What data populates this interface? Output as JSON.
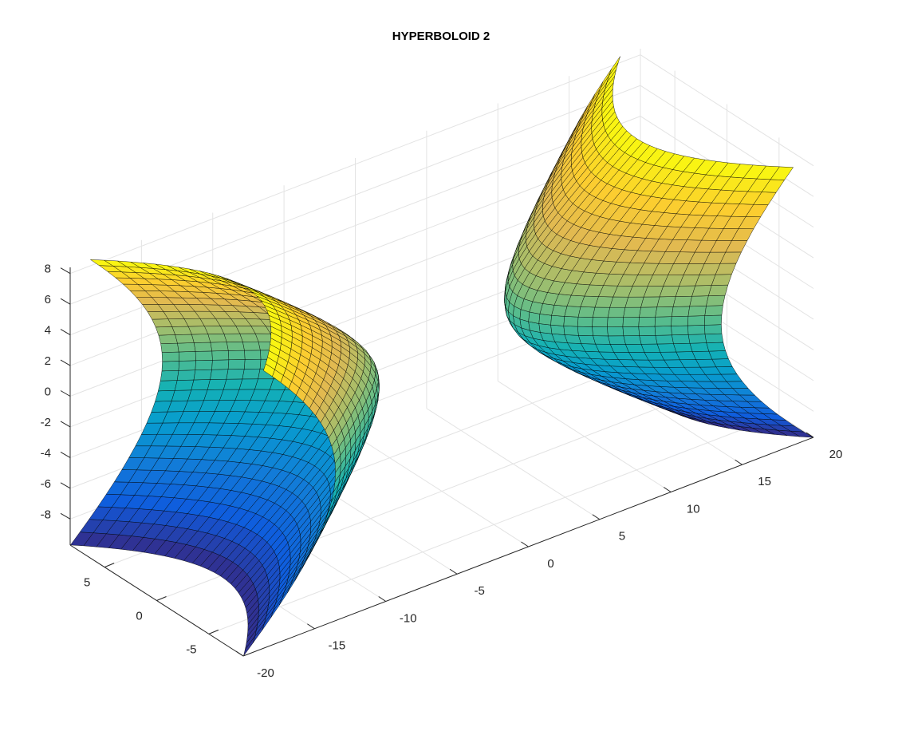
{
  "chart_data": {
    "type": "surface3d",
    "title": "HYPERBOLOID 2",
    "xlim": [
      -20,
      20
    ],
    "xticks": [
      -20,
      -15,
      -10,
      -5,
      0,
      5,
      10,
      15,
      20
    ],
    "ylim": [
      -8.3,
      8.3
    ],
    "yticks": [
      -5,
      0,
      5
    ],
    "zlim": [
      -9.7,
      8.4
    ],
    "zticks": [
      -8,
      -6,
      -4,
      -2,
      0,
      2,
      4,
      6,
      8
    ],
    "grid": true,
    "colormap": "parula"
  }
}
